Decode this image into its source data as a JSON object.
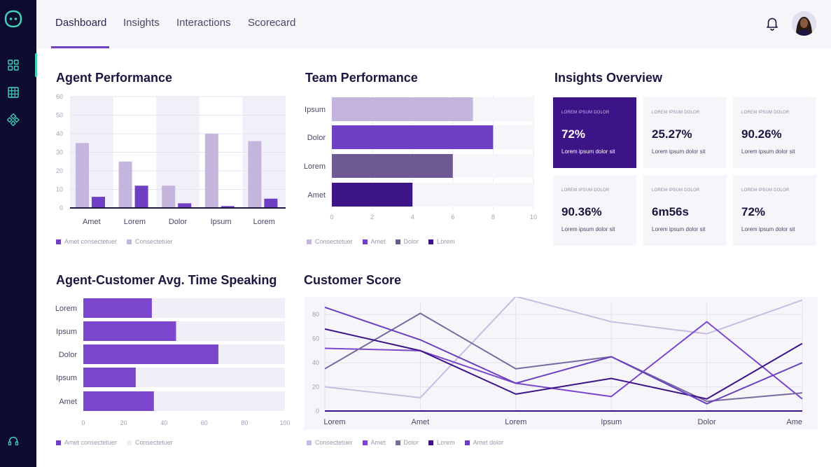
{
  "nav": {
    "tabs": [
      {
        "label": "Dashboard"
      },
      {
        "label": "Insights"
      },
      {
        "label": "Interactions"
      },
      {
        "label": "Scorecard"
      }
    ],
    "active_tab": "Dashboard"
  },
  "sidebar": {
    "items": [
      {
        "icon": "grid-icon"
      },
      {
        "icon": "table-icon"
      },
      {
        "icon": "nodes-icon"
      },
      {
        "icon": "headset-icon"
      }
    ],
    "active_index": 0
  },
  "sections": {
    "agent_performance": "Agent Performance",
    "team_performance": "Team Performance",
    "insights_overview": "Insights Overview",
    "avg_time_speaking": "Agent-Customer Avg. Time Speaking",
    "customer_score": "Customer Score"
  },
  "insights_cards": [
    {
      "label": "LOREM IPSUM DOLOR",
      "value": "72%",
      "sub": "Lorem ipsum dolor sit",
      "highlight": true
    },
    {
      "label": "LOREM IPSUM DOLOR",
      "value": "25.27%",
      "sub": "Lorem ipsum dolor sit",
      "highlight": false
    },
    {
      "label": "LOREM IPSUM DOLOR",
      "value": "90.26%",
      "sub": "Lorem ipsum dolor sit",
      "highlight": false
    },
    {
      "label": "LOREM IPSUM DOLOR",
      "value": "90.36%",
      "sub": "Lorem ipsum dolor sit",
      "highlight": false
    },
    {
      "label": "LOREM IPSUM DOLOR",
      "value": "6m56s",
      "sub": "Lorem ipsum dolor sit",
      "highlight": false
    },
    {
      "label": "LOREM IPSUM DOLOR",
      "value": "72%",
      "sub": "Lorem ipsum dolor sit",
      "highlight": false
    }
  ],
  "colors": {
    "accent": "#6f3fc4",
    "light": "#c4b5dc",
    "medium": "#6e5a92",
    "dark": "#3d1388",
    "sidebar": "#0e0c2e",
    "teal": "#3fd2bd"
  },
  "chart_data": [
    {
      "id": "agent_performance",
      "type": "bar",
      "categories": [
        "Amet",
        "Lorem",
        "Dolor",
        "Ipsum",
        "Lorem"
      ],
      "ylim": [
        0,
        60
      ],
      "yticks": [
        0,
        10,
        20,
        30,
        40,
        50,
        60
      ],
      "series": [
        {
          "name": "Consectetuer",
          "values": [
            35,
            25,
            12,
            40,
            36
          ],
          "color": "#c4b5dc"
        },
        {
          "name": "Amet consectetuer",
          "values": [
            6,
            12,
            2.5,
            1,
            5
          ],
          "color": "#6f3fc4"
        }
      ],
      "legend": [
        {
          "name": "Amet consectetuer",
          "color": "#6f3fc4"
        },
        {
          "name": "Consectetuer",
          "color": "#c4b5dc"
        }
      ]
    },
    {
      "id": "team_performance",
      "type": "bar",
      "orientation": "horizontal",
      "categories": [
        "Ipsum",
        "Dolor",
        "Lorem",
        "Amet"
      ],
      "values": [
        7,
        8,
        6,
        4
      ],
      "colors": [
        "#c4b5dc",
        "#6f3fc4",
        "#6e5a92",
        "#3d1388"
      ],
      "xlim": [
        0,
        10
      ],
      "xticks": [
        0,
        2,
        4,
        6,
        8,
        10
      ],
      "legend": [
        {
          "name": "Consectetuer",
          "color": "#c4b5dc"
        },
        {
          "name": "Amet",
          "color": "#6f3fc4"
        },
        {
          "name": "Dolor",
          "color": "#6e5a92"
        },
        {
          "name": "Lorem",
          "color": "#3d1388"
        }
      ]
    },
    {
      "id": "avg_time_speaking",
      "type": "bar",
      "orientation": "horizontal",
      "categories": [
        "Lorem",
        "Ipsum",
        "Dolor",
        "Ipsum",
        "Amet"
      ],
      "values": [
        34,
        46,
        67,
        26,
        35
      ],
      "color": "#7b47cc",
      "xlim": [
        0,
        100
      ],
      "xticks": [
        0,
        20,
        40,
        60,
        80,
        100
      ],
      "legend": [
        {
          "name": "Amet consectetuer",
          "color": "#6f3fc4"
        },
        {
          "name": "Consectetuer",
          "color": "#f0eef6"
        }
      ]
    },
    {
      "id": "customer_score",
      "type": "line",
      "categories": [
        "Lorem",
        "Amet",
        "Lorem",
        "Ipsum",
        "Dolor",
        "Ame"
      ],
      "ylim": [
        0,
        90
      ],
      "yticks": [
        0,
        20,
        40,
        60,
        80
      ],
      "series": [
        {
          "name": "Consectetuer",
          "values": [
            20,
            11,
            95,
            74,
            64,
            92
          ],
          "color": "#c8bde0"
        },
        {
          "name": "Amet",
          "values": [
            52,
            50,
            23,
            12,
            74,
            10
          ],
          "color": "#7b47cc"
        },
        {
          "name": "Dolor",
          "values": [
            35,
            81,
            35,
            45,
            8,
            15
          ],
          "color": "#7a6a9e"
        },
        {
          "name": "Lorem",
          "values": [
            68,
            50,
            14,
            27,
            10,
            56
          ],
          "color": "#3d1388"
        },
        {
          "name": "Amet dolor",
          "values": [
            86,
            59,
            23,
            45,
            6,
            40
          ],
          "color": "#6a3fc0"
        }
      ]
    }
  ]
}
